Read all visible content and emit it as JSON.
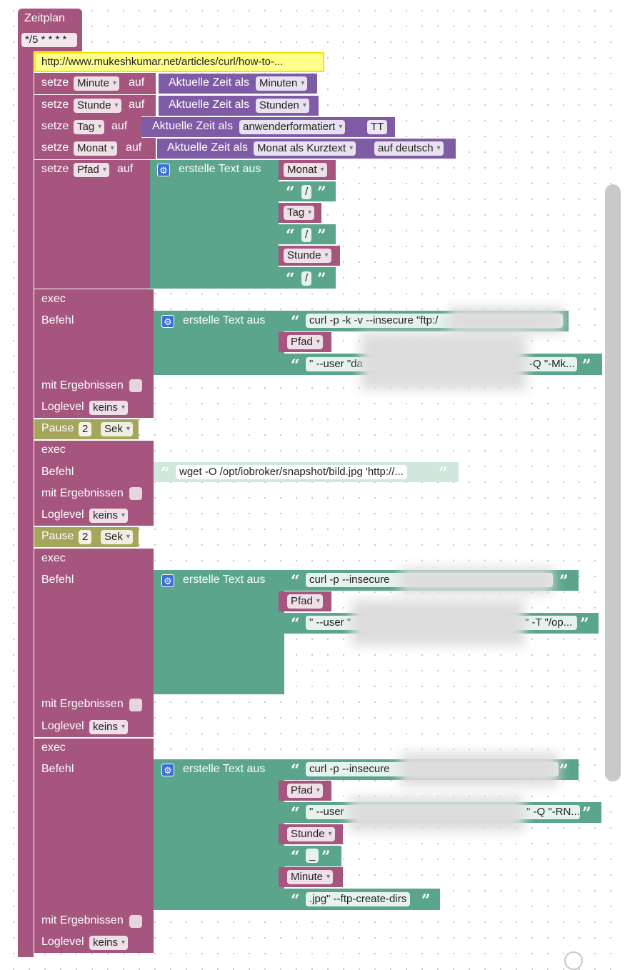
{
  "schedule": {
    "label": "Zeitplan",
    "cron": "*/5 * * * *"
  },
  "comment": "http://www.mukeshkumar.net/articles/curl/how-to-...",
  "set_rows": [
    {
      "setze": "setze",
      "var": "Minute",
      "auf": "auf",
      "func": "Aktuelle Zeit als",
      "opt1": "Minuten",
      "opt2": ""
    },
    {
      "setze": "setze",
      "var": "Stunde",
      "auf": "auf",
      "func": "Aktuelle Zeit als",
      "opt1": "Stunden",
      "opt2": ""
    },
    {
      "setze": "setze",
      "var": "Tag",
      "auf": "auf",
      "func": "Aktuelle Zeit als",
      "opt1": "anwenderformatiert",
      "opt2": "TT"
    },
    {
      "setze": "setze",
      "var": "Monat",
      "auf": "auf",
      "func": "Aktuelle Zeit als",
      "opt1": "Monat als Kurztext",
      "opt2": "auf deutsch"
    }
  ],
  "pfad": {
    "setze": "setze",
    "var": "Pfad",
    "auf": "auf",
    "func": "erstelle Text aus",
    "items": [
      {
        "var": "Monat"
      },
      {
        "text": "/"
      },
      {
        "var": "Tag"
      },
      {
        "text": "/"
      },
      {
        "var": "Stunde"
      },
      {
        "text": "/"
      }
    ]
  },
  "exec1": {
    "exec": "exec",
    "befehl": "Befehl",
    "func": "erstelle Text aus",
    "items": [
      {
        "text": "curl -p -k -v --insecure \"ftp:/"
      },
      {
        "var": "Pfad"
      },
      {
        "text": "\" --user \"da",
        "text_end": "-Q \"-Mk..."
      }
    ],
    "mit": "mit Ergebnissen",
    "loglevel": "Loglevel",
    "log_opt": "keins"
  },
  "pause1": {
    "label": "Pause",
    "value": "2",
    "unit": "Sek"
  },
  "exec2": {
    "exec": "exec",
    "befehl": "Befehl",
    "text": "wget -O /opt/iobroker/snapshot/bild.jpg 'http://...",
    "mit": "mit Ergebnissen",
    "loglevel": "Loglevel",
    "log_opt": "keins"
  },
  "pause2": {
    "label": "Pause",
    "value": "2",
    "unit": "Sek"
  },
  "exec3": {
    "exec": "exec",
    "befehl": "Befehl",
    "func": "erstelle Text aus",
    "items": [
      {
        "text": "curl -p --insecure"
      },
      {
        "var": "Pfad"
      },
      {
        "text": "\" --user \"",
        "text_end": "\" -T \"/op..."
      }
    ],
    "mit": "mit Ergebnissen",
    "loglevel": "Loglevel",
    "log_opt": "keins"
  },
  "exec4": {
    "exec": "exec",
    "befehl": "Befehl",
    "func": "erstelle Text aus",
    "items": [
      {
        "text": "curl -p --insecure"
      },
      {
        "var": "Pfad"
      },
      {
        "text": "\" --user",
        "text_end": "\" -Q \"-RN..."
      },
      {
        "var": "Stunde"
      },
      {
        "text": "_"
      },
      {
        "var": "Minute"
      },
      {
        "text": ".jpg\" --ftp-create-dirs"
      }
    ],
    "mit": "mit Ergebnissen",
    "loglevel": "Loglevel",
    "log_opt": "keins"
  },
  "colors": {
    "pink": "#a5557e",
    "purple": "#7f5ba6",
    "teal": "#5ba58c",
    "olive": "#a5a55b",
    "comment": "#ffff8a"
  }
}
